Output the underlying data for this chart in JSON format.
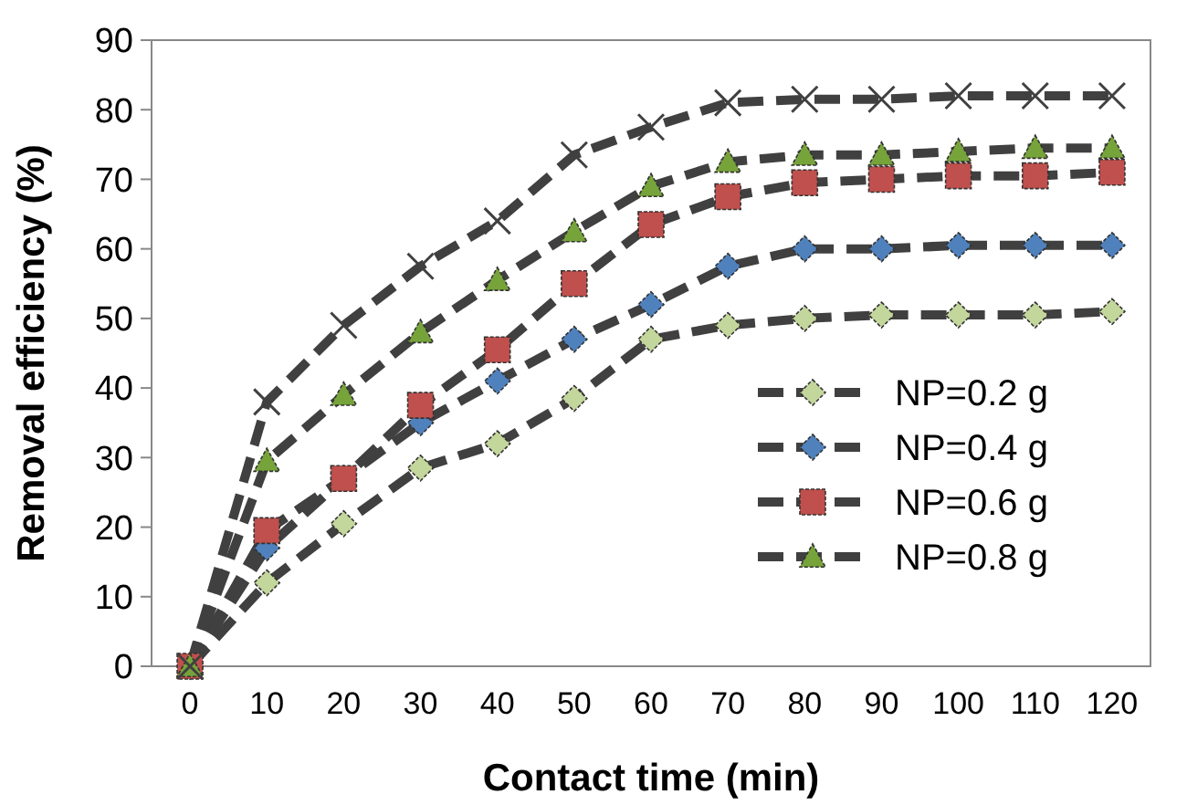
{
  "chart_data": {
    "type": "line",
    "xlabel": "Contact time (min)",
    "ylabel": "Removal efficiency (%)",
    "categories": [
      "0",
      "10",
      "20",
      "30",
      "40",
      "50",
      "60",
      "70",
      "80",
      "90",
      "100",
      "110",
      "120"
    ],
    "ylim": [
      0,
      90
    ],
    "yticks": [
      0,
      10,
      20,
      30,
      40,
      50,
      60,
      70,
      80,
      90
    ],
    "grid": false,
    "legend": "bottom right",
    "line_style": "dashed",
    "series": [
      {
        "name": "NP=0.2 g",
        "color": "#c3d69b",
        "marker": "diamond",
        "values": [
          0,
          12,
          20.5,
          28.5,
          32,
          38.5,
          47,
          49,
          50,
          50.5,
          50.5,
          50.5,
          51
        ]
      },
      {
        "name": "NP=0.4 g",
        "color": "#4f81bd",
        "marker": "diamond",
        "values": [
          0,
          17,
          27,
          35,
          41,
          47,
          52,
          57.5,
          60,
          60,
          60.5,
          60.5,
          60.5
        ]
      },
      {
        "name": "NP=0.6 g",
        "color": "#c0504d",
        "marker": "square",
        "values": [
          0,
          19.5,
          27,
          37.5,
          45.5,
          55,
          63.5,
          67.5,
          69.5,
          70,
          70.5,
          70.5,
          71
        ]
      },
      {
        "name": "NP=0.8 g",
        "color": "#77a33b",
        "marker": "triangle",
        "values": [
          0,
          29.5,
          39,
          48,
          55.5,
          62.5,
          69,
          72.5,
          73.5,
          73.5,
          74,
          74.5,
          74.5
        ]
      },
      {
        "color": "#404040",
        "marker": "cross",
        "values": [
          0,
          38,
          49,
          57.5,
          64,
          73.5,
          77.5,
          81,
          81.5,
          81.5,
          82,
          82,
          82
        ]
      }
    ]
  }
}
